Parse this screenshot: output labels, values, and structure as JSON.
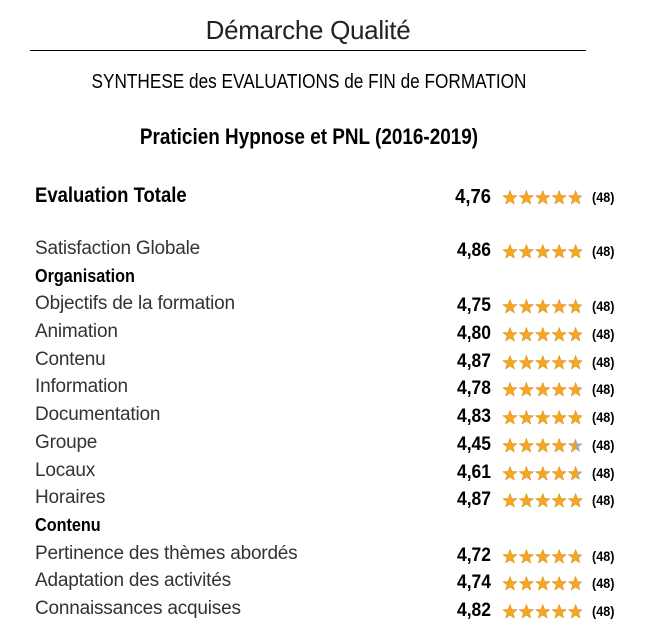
{
  "header": {
    "title": "Démarche Qualité"
  },
  "subtitle": "SYNTHESE des EVALUATIONS de FIN de FORMATION",
  "course": "Praticien Hypnose et PNL (2016-2019)",
  "colors": {
    "star_fill": "#f5a623",
    "star_empty": "#a8a8a8"
  },
  "total": {
    "label": "Evaluation Totale",
    "score": "4,76",
    "value": 4.76,
    "count": "(48)"
  },
  "items": [
    {
      "type": "row",
      "label": "Satisfaction Globale",
      "score": "4,86",
      "value": 4.86,
      "count": "(48)"
    },
    {
      "type": "section",
      "label": "Organisation"
    },
    {
      "type": "row",
      "label": "Objectifs de la formation",
      "score": "4,75",
      "value": 4.75,
      "count": "(48)"
    },
    {
      "type": "row",
      "label": "Animation",
      "score": "4,80",
      "value": 4.8,
      "count": "(48)"
    },
    {
      "type": "row",
      "label": "Contenu",
      "score": "4,87",
      "value": 4.87,
      "count": "(48)"
    },
    {
      "type": "row",
      "label": "Information",
      "score": "4,78",
      "value": 4.78,
      "count": "(48)"
    },
    {
      "type": "row",
      "label": "Documentation",
      "score": "4,83",
      "value": 4.83,
      "count": "(48)"
    },
    {
      "type": "row",
      "label": "Groupe",
      "score": "4,45",
      "value": 4.45,
      "count": "(48)"
    },
    {
      "type": "row",
      "label": "Locaux",
      "score": "4,61",
      "value": 4.61,
      "count": "(48)"
    },
    {
      "type": "row",
      "label": "Horaires",
      "score": "4,87",
      "value": 4.87,
      "count": "(48)"
    },
    {
      "type": "section",
      "label": "Contenu"
    },
    {
      "type": "row",
      "label": "Pertinence des thèmes abordés",
      "score": "4,72",
      "value": 4.72,
      "count": "(48)"
    },
    {
      "type": "row",
      "label": "Adaptation des activités",
      "score": "4,74",
      "value": 4.74,
      "count": "(48)"
    },
    {
      "type": "row",
      "label": "Connaissances acquises",
      "score": "4,82",
      "value": 4.82,
      "count": "(48)"
    }
  ]
}
